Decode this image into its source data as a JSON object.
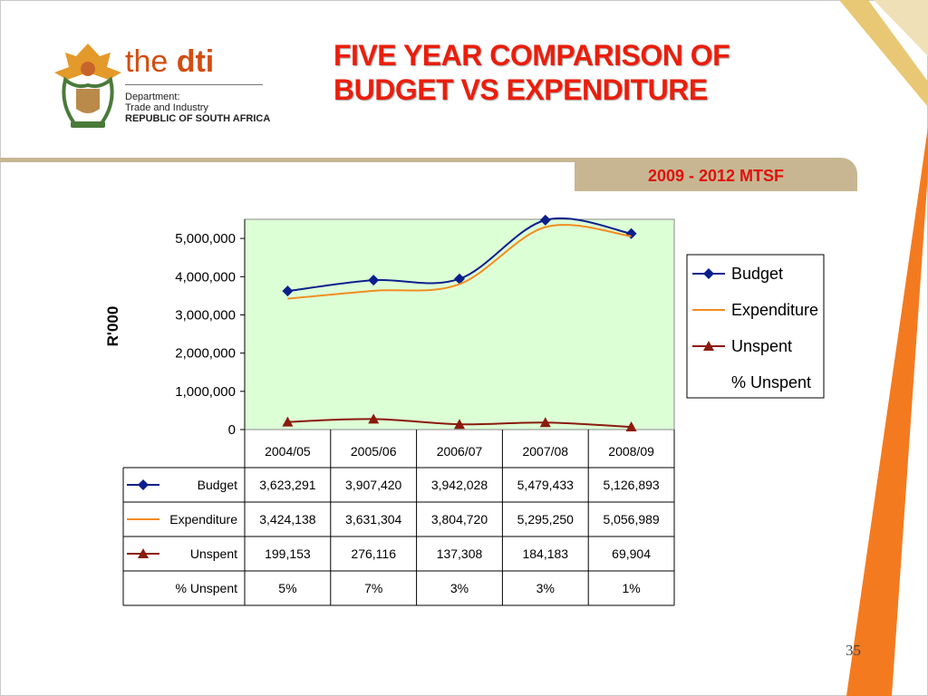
{
  "slide": {
    "title_line1": "FIVE YEAR COMPARISON OF",
    "title_line2": "BUDGET VS EXPENDITURE",
    "subtitle": "2009 - 2012 MTSF",
    "page_number": "35"
  },
  "logo": {
    "brand_prefix": "the",
    "brand_name": "dti",
    "dept_line1": "Department:",
    "dept_line2": "Trade and Industry",
    "dept_line3": "REPUBLIC OF SOUTH AFRICA"
  },
  "colors": {
    "budget": "#0b1f8c",
    "expenditure": "#f28c1e",
    "unspent": "#8b1a0e",
    "plot_bg": "#ddffd6",
    "title": "#ea1e0c",
    "accent_orange": "#f47a20"
  },
  "chart_data": {
    "type": "line",
    "title": "",
    "xlabel": "",
    "ylabel": "R'000",
    "ylim": [
      0,
      5500000
    ],
    "yticks": [
      "0",
      "1,000,000",
      "2,000,000",
      "3,000,000",
      "4,000,000",
      "5,000,000"
    ],
    "categories": [
      "2004/05",
      "2005/06",
      "2006/07",
      "2007/08",
      "2008/09"
    ],
    "grid": false,
    "legend_position": "right",
    "series": [
      {
        "name": "Budget",
        "marker": "diamond",
        "values": [
          3623291,
          3907420,
          3942028,
          5479433,
          5126893
        ],
        "labels": [
          "3,623,291",
          "3,907,420",
          "3,942,028",
          "5,479,433",
          "5,126,893"
        ]
      },
      {
        "name": "Expenditure",
        "marker": "none",
        "values": [
          3424138,
          3631304,
          3804720,
          5295250,
          5056989
        ],
        "labels": [
          "3,424,138",
          "3,631,304",
          "3,804,720",
          "5,295,250",
          "5,056,989"
        ]
      },
      {
        "name": "Unspent",
        "marker": "triangle",
        "values": [
          199153,
          276116,
          137308,
          184183,
          69904
        ],
        "labels": [
          "199,153",
          "276,116",
          "137,308",
          "184,183",
          "69,904"
        ]
      },
      {
        "name": "% Unspent",
        "marker": "none",
        "plotted": false,
        "values": [
          5,
          7,
          3,
          3,
          1
        ],
        "labels": [
          "5%",
          "7%",
          "3%",
          "3%",
          "1%"
        ]
      }
    ]
  }
}
